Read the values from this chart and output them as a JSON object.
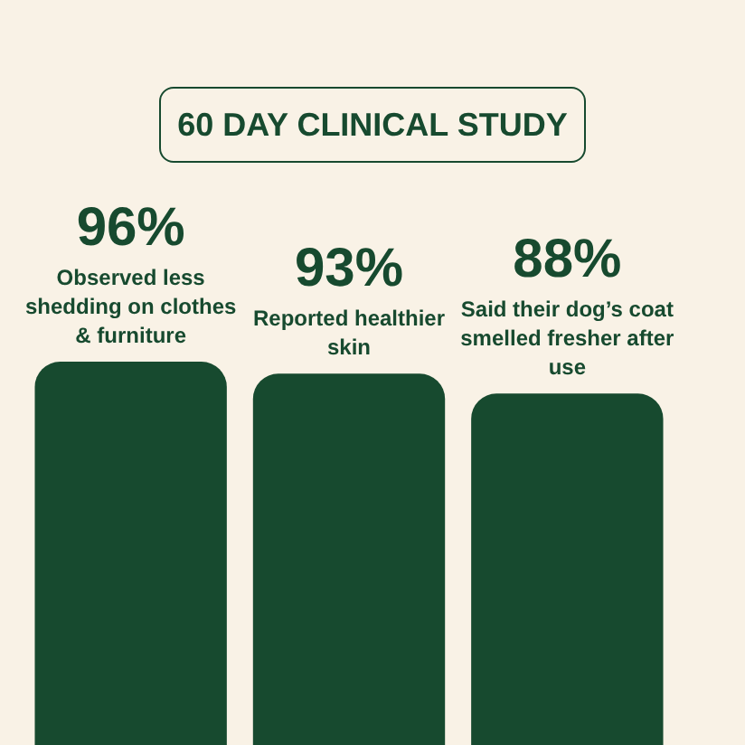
{
  "chart_data": {
    "type": "bar",
    "title": "60 DAY CLINICAL STUDY",
    "categories": [
      "Observed less shedding on clothes & furniture",
      "Reported healthier skin",
      "Said their dog’s coat smelled fresher after use"
    ],
    "values": [
      96,
      93,
      88
    ],
    "value_labels": [
      "96%",
      "93%",
      "88%"
    ],
    "color": "#174a2f"
  }
}
